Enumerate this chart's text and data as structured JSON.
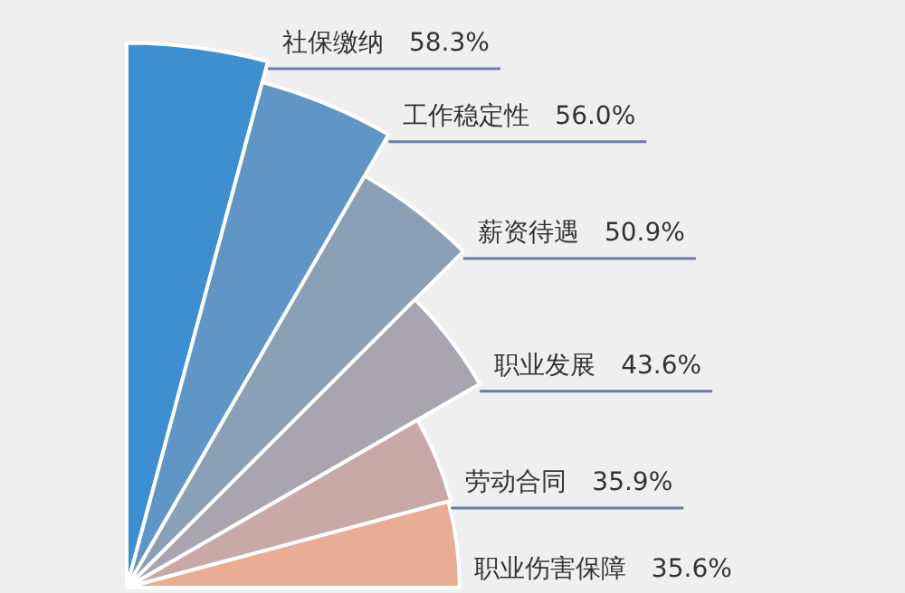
{
  "chart_data": {
    "type": "other",
    "categories": [
      "社保缴纳",
      "工作稳定性",
      "薪资待遇",
      "职业发展",
      "劳动合同",
      "职业伤害保障"
    ],
    "values": [
      58.3,
      56.0,
      50.9,
      43.6,
      35.9,
      35.6
    ],
    "value_labels": [
      "58.3%",
      "56.0%",
      "50.9%",
      "43.6%",
      "35.9%",
      "35.6%"
    ],
    "colors": [
      "#3d8fd0",
      "#5f96c6",
      "#8aa0b6",
      "#a9a5b0",
      "#c8a9a6",
      "#e9ad95"
    ],
    "legend": false
  }
}
